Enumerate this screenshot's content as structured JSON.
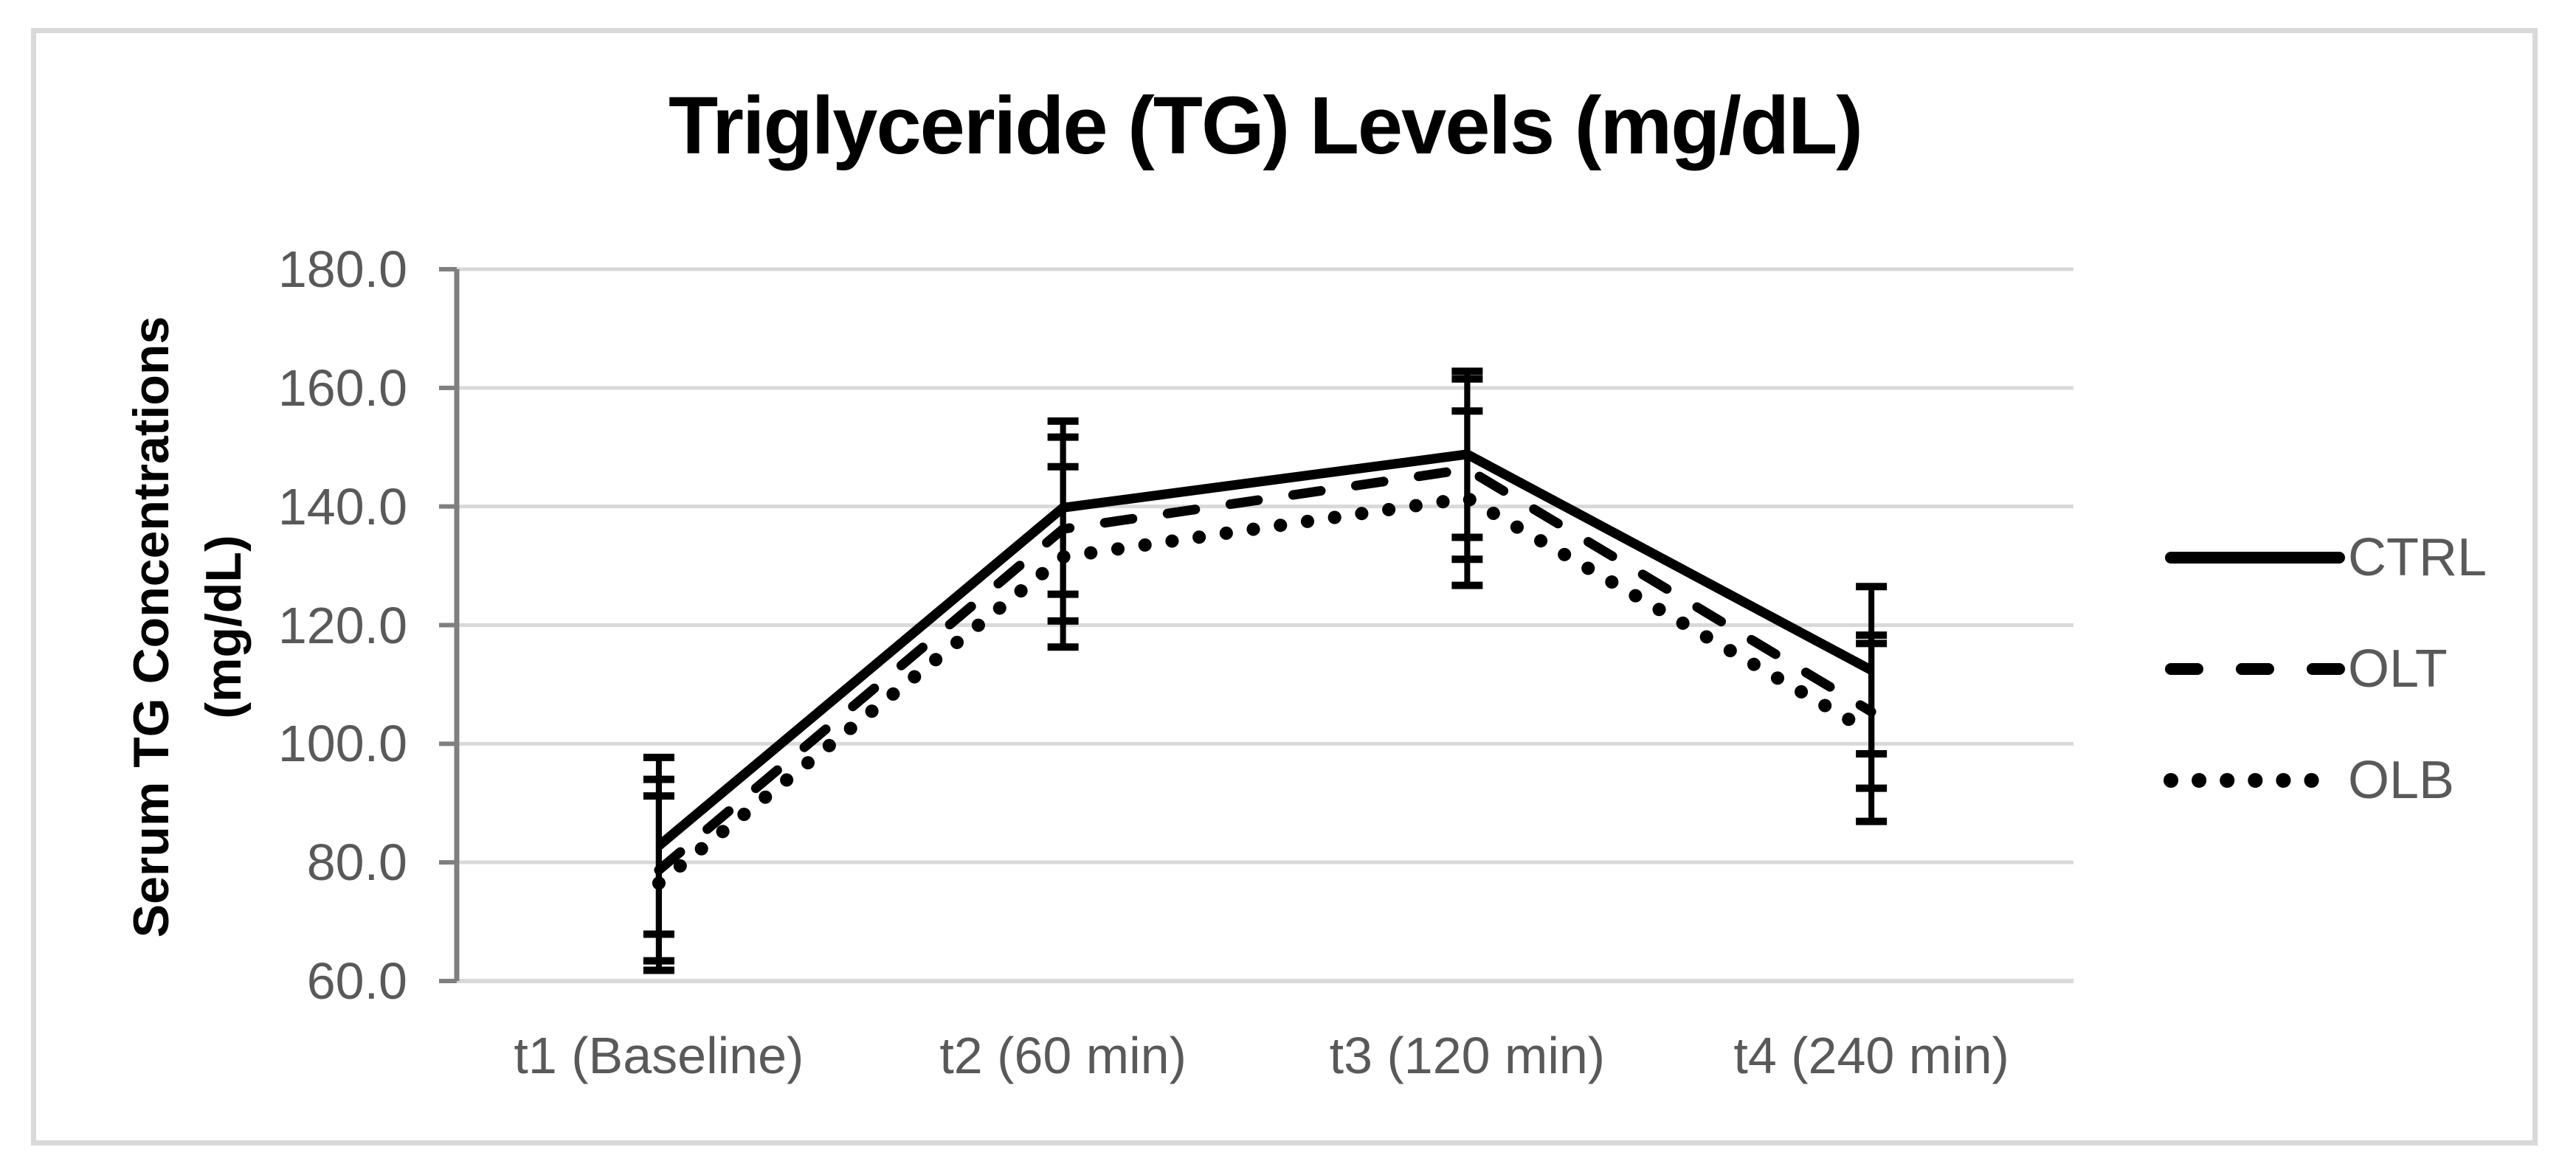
{
  "figure": {
    "kind": "excel-style line chart with error bars"
  },
  "colors": {
    "series_line": "#000000",
    "title_text": "#000000",
    "muted_text": "#595959",
    "gridline": "#d9d9d9",
    "axis_line": "#7f7f7f",
    "frame_border": "#d9d9d9",
    "background": "#ffffff"
  },
  "chart_data": {
    "type": "line",
    "title": "Triglyceride (TG) Levels (mg/dL)",
    "ylabel_lines": [
      "Serum TG Concentrations",
      "(mg/dL)"
    ],
    "xlabel": "",
    "categories": [
      "t1 (Baseline)",
      "t2 (60 min)",
      "t3 (120 min)",
      "t4 (240 min)"
    ],
    "ylim": [
      60,
      180
    ],
    "ytick_step": 20,
    "ytick_labels": [
      "60.0",
      "80.0",
      "100.0",
      "120.0",
      "140.0",
      "160.0",
      "180.0"
    ],
    "grid": true,
    "legend_position": "right",
    "error_bars": true,
    "series": [
      {
        "name": "CTRL",
        "line_style": "solid",
        "values": [
          82.8,
          139.8,
          148.8,
          112.4
        ],
        "error": [
          14.9,
          14.6,
          14.0,
          14.1
        ]
      },
      {
        "name": "OLT",
        "line_style": "dashed",
        "values": [
          78.7,
          136.2,
          146.3,
          105.4
        ],
        "error": [
          15.3,
          15.5,
          15.2,
          12.9
        ]
      },
      {
        "name": "OLB",
        "line_style": "dotted",
        "values": [
          76.5,
          131.5,
          141.4,
          101.9
        ],
        "error": [
          14.7,
          15.2,
          14.7,
          15.0
        ]
      }
    ]
  }
}
